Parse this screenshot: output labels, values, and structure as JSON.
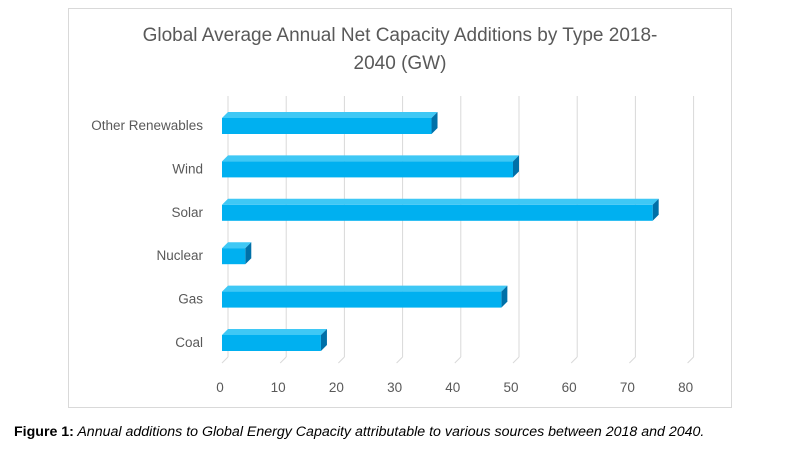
{
  "chart_data": {
    "type": "bar",
    "orientation": "horizontal",
    "title_lines": [
      "Global Average Annual Net Capacity Additions by Type 2018-",
      "2040 (GW)"
    ],
    "categories": [
      "Other Renewables",
      "Wind",
      "Solar",
      "Nuclear",
      "Gas",
      "Coal"
    ],
    "values": [
      36,
      50,
      74,
      4,
      48,
      17
    ],
    "xlim": [
      0,
      80
    ],
    "xticks": [
      "0",
      "10",
      "20",
      "30",
      "40",
      "50",
      "60",
      "70",
      "80"
    ],
    "grid": true,
    "legend": "none",
    "bar_color": "#00b0f0",
    "bar_side_color": "#0070a8"
  },
  "caption": {
    "label": "Figure 1:",
    "text": " Annual additions to Global Energy Capacity attributable to various sources between 2018 and 2040."
  }
}
